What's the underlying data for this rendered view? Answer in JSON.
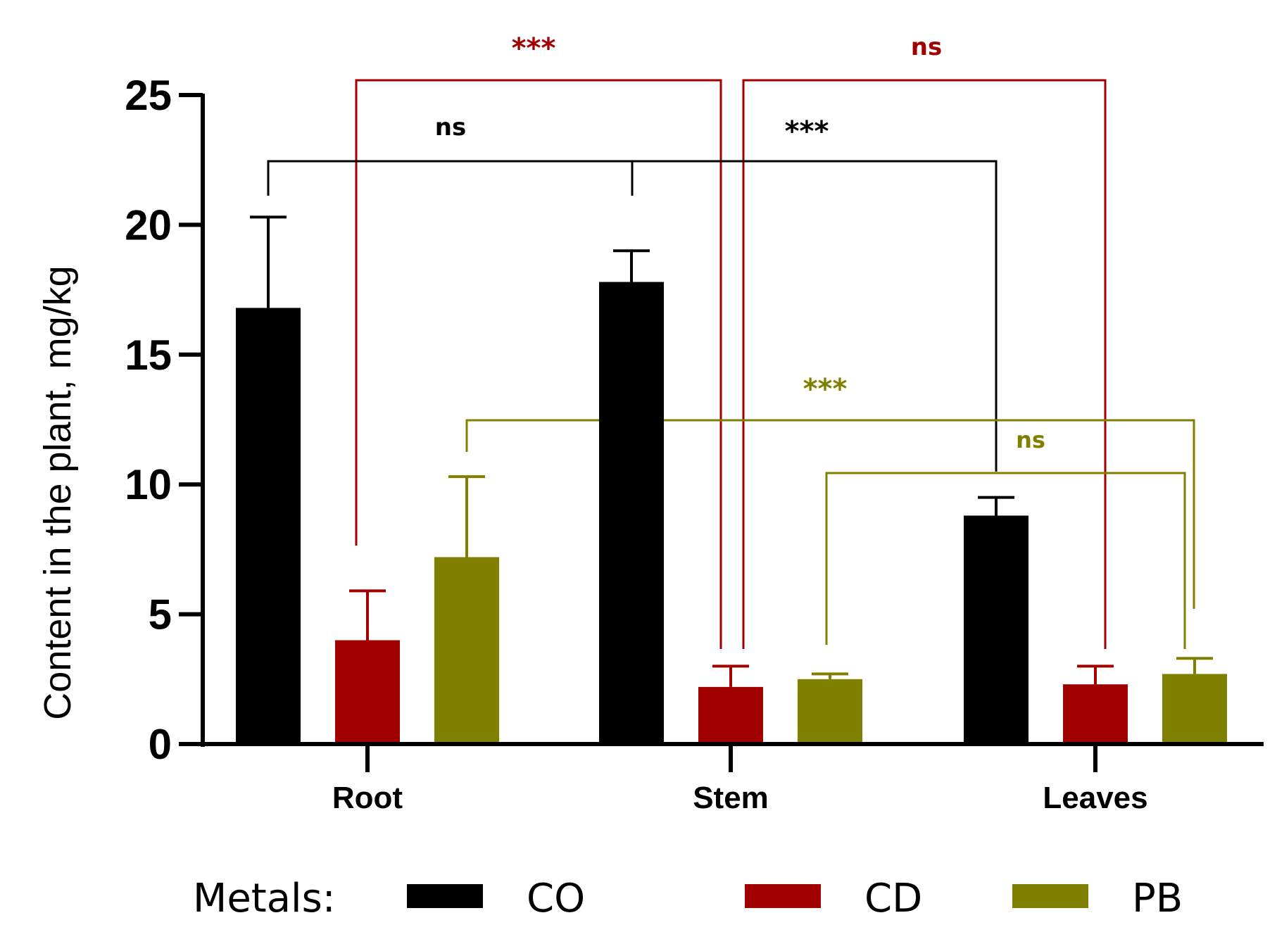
{
  "chart_data": {
    "type": "bar",
    "title": "",
    "xlabel": "",
    "ylabel": "Content in the plant, mg/kg",
    "ylim": [
      0,
      25
    ],
    "yticks": [
      "0",
      "5",
      "10",
      "15",
      "20",
      "25"
    ],
    "categories": [
      "Root",
      "Stem",
      "Leaves"
    ],
    "series": [
      {
        "name": "CO",
        "color": "#000000",
        "values": [
          16.8,
          17.8,
          8.8
        ],
        "errors": [
          3.5,
          1.2,
          0.7
        ]
      },
      {
        "name": "CD",
        "color": "#a00000",
        "values": [
          4.0,
          2.2,
          2.3
        ],
        "errors": [
          1.9,
          0.8,
          0.7
        ]
      },
      {
        "name": "PB",
        "color": "#808000",
        "values": [
          7.2,
          2.5,
          2.7
        ],
        "errors": [
          3.1,
          0.2,
          0.6
        ]
      }
    ],
    "legend": {
      "title": "Metals:",
      "title_color": "#a00000",
      "position": "bottom"
    },
    "significance": [
      {
        "label": "***",
        "color": "#a00000",
        "series": "CD",
        "from": "Root",
        "to": "Stem"
      },
      {
        "label": "ns",
        "color": "#a00000",
        "series": "CD",
        "from": "Stem",
        "to": "Leaves"
      },
      {
        "label": "ns",
        "color": "#000000",
        "series": "CO",
        "from": "Root",
        "to": "Stem"
      },
      {
        "label": "***",
        "color": "#000000",
        "series": "CO",
        "from": "Stem",
        "to": "Leaves"
      },
      {
        "label": "***",
        "color": "#808000",
        "series": "PB",
        "from": "Root",
        "to": "Leaves"
      },
      {
        "label": "ns",
        "color": "#808000",
        "series": "PB",
        "from": "Stem",
        "to": "Leaves"
      }
    ]
  }
}
